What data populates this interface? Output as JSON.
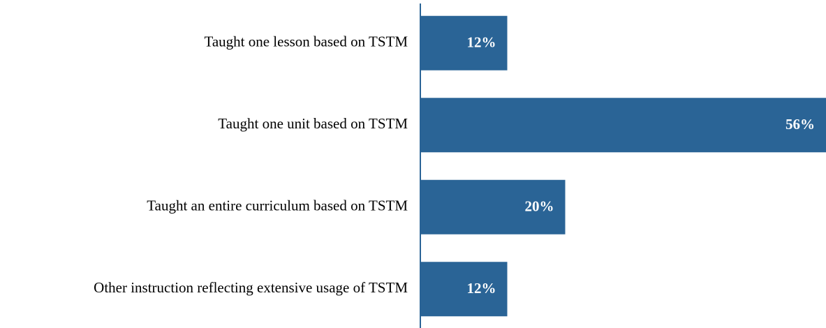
{
  "chart_data": {
    "type": "hbar",
    "categories": [
      "Taught one lesson based on TSTM",
      "Taught one unit based on TSTM",
      "Taught an entire curriculum based on TSTM",
      "Other instruction reflecting extensive usage of TSTM"
    ],
    "values": [
      12,
      56,
      20,
      12
    ],
    "value_labels": [
      "12%",
      "56%",
      "20%",
      "12%"
    ],
    "color": "#2a6496",
    "xlim": [
      0,
      56
    ]
  }
}
